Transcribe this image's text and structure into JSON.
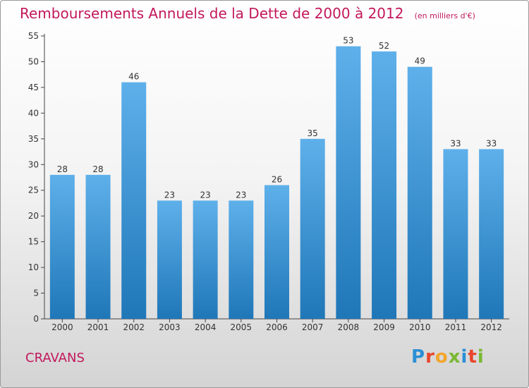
{
  "header": {
    "title": "Remboursements Annuels de la Dette de 2000 à 2012",
    "unit": "(en milliers d'€)"
  },
  "commune": "CRAVANS",
  "logo": {
    "text": "Proxiti",
    "letters": [
      "P",
      "r",
      "o",
      "x",
      "i",
      "t",
      "i"
    ]
  },
  "colors": {
    "title": "#c2185b",
    "bar_top": "#5eb0ea",
    "bar_bottom": "#1f77b8",
    "axis": "#444444"
  },
  "chart_data": {
    "type": "bar",
    "title": "Remboursements Annuels de la Dette de 2000 à 2012",
    "xlabel": "",
    "ylabel": "",
    "categories": [
      "2000",
      "2001",
      "2002",
      "2003",
      "2004",
      "2005",
      "2006",
      "2007",
      "2008",
      "2009",
      "2010",
      "2011",
      "2012"
    ],
    "values": [
      28,
      28,
      46,
      23,
      23,
      23,
      26,
      35,
      53,
      52,
      49,
      33,
      33
    ],
    "ylim": [
      0,
      55
    ],
    "yticks": [
      0,
      5,
      10,
      15,
      20,
      25,
      30,
      35,
      40,
      45,
      50,
      55
    ],
    "data_labels": true,
    "grid": false,
    "legend": "none"
  }
}
